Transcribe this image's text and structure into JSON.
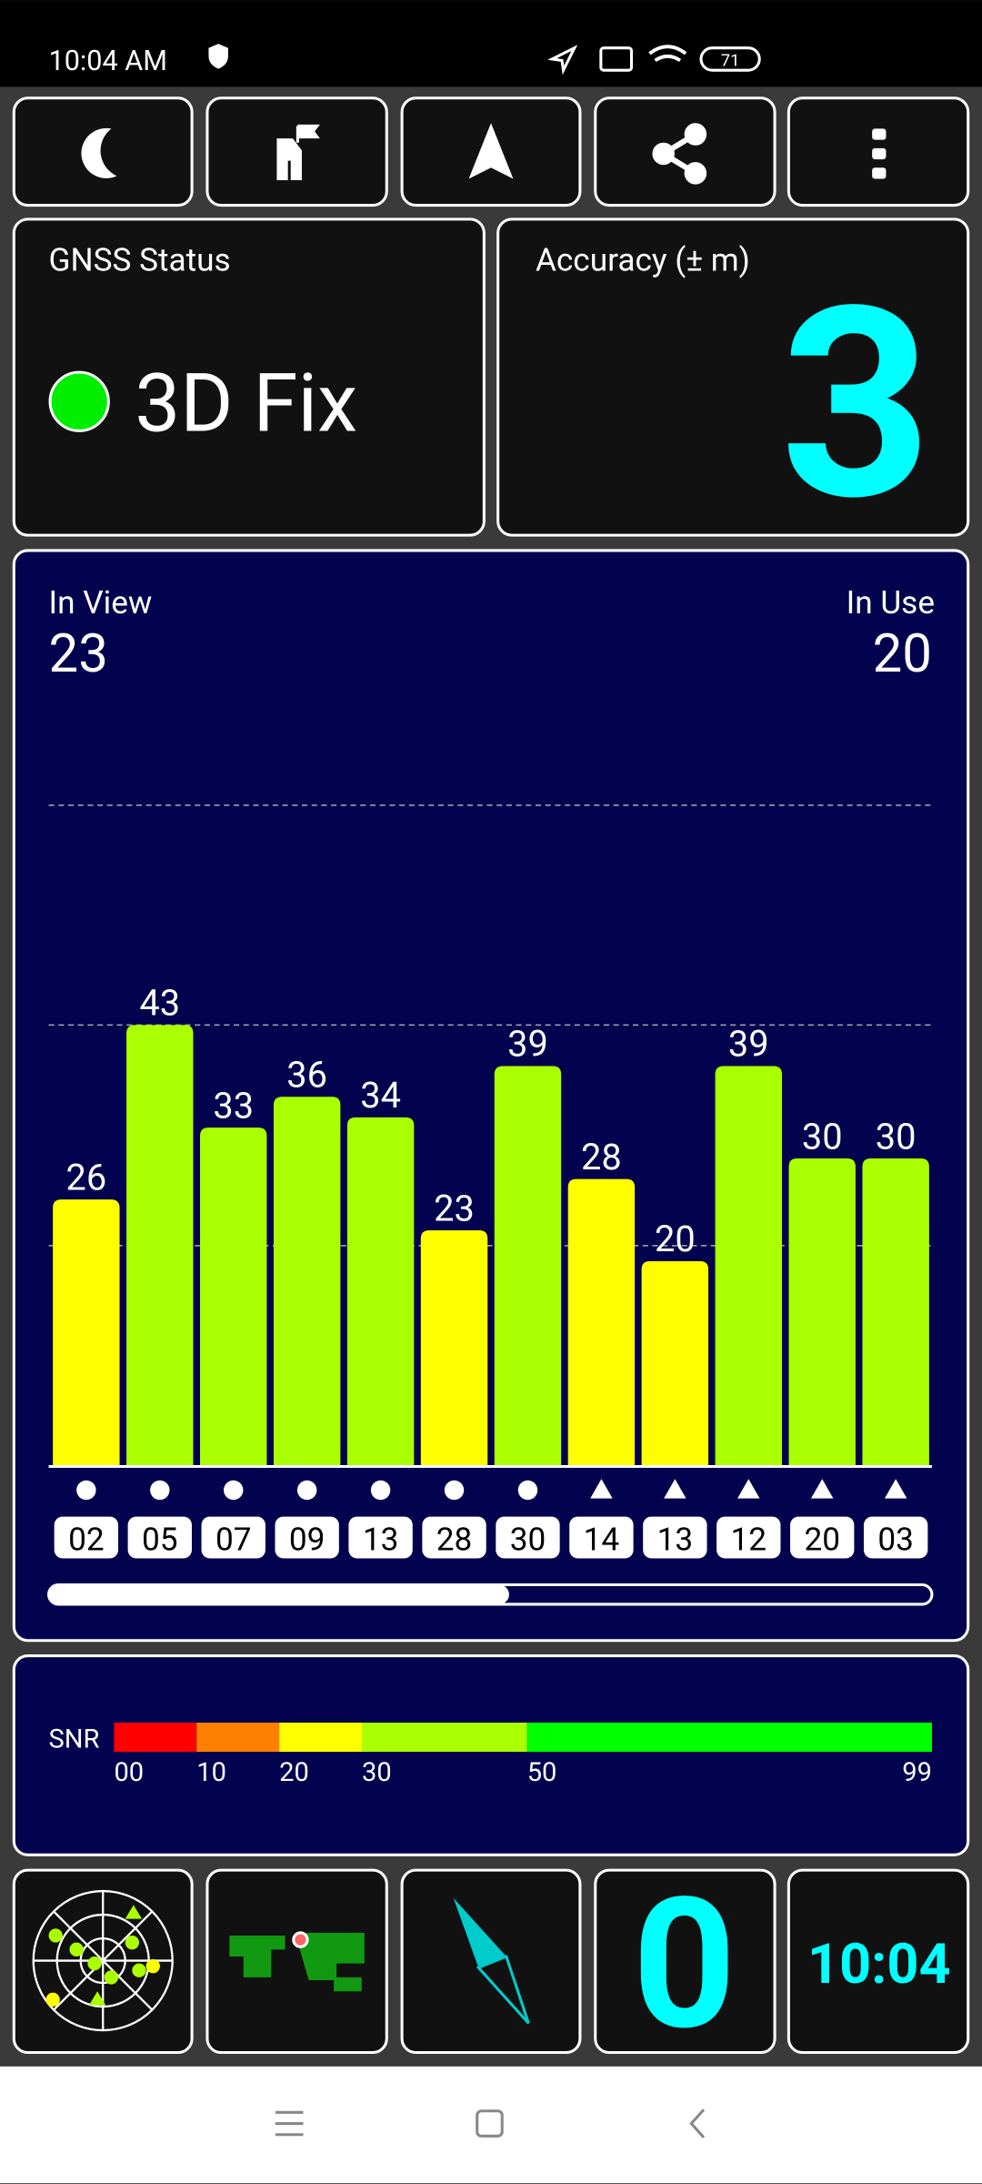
{
  "status_bar": {
    "time": "10:04 AM",
    "battery": "71"
  },
  "gnss_status": {
    "label": "GNSS Status",
    "value": "3D Fix"
  },
  "accuracy": {
    "label": "Accuracy (± m)",
    "value": "3"
  },
  "in_view": {
    "label": "In View",
    "value": "23"
  },
  "in_use": {
    "label": "In Use",
    "value": "20"
  },
  "chart_data": {
    "type": "bar",
    "categories": [
      "02",
      "05",
      "07",
      "09",
      "13",
      "28",
      "30",
      "14",
      "13",
      "12",
      "20",
      "03"
    ],
    "values": [
      26,
      43,
      33,
      36,
      34,
      23,
      39,
      28,
      20,
      39,
      30,
      30
    ],
    "colors": [
      "#ffff00",
      "#aaff00",
      "#aaff00",
      "#aaff00",
      "#aaff00",
      "#ffff00",
      "#aaff00",
      "#ffff00",
      "#ffff00",
      "#aaff00",
      "#aaff00",
      "#aaff00"
    ],
    "shapes": [
      "circle",
      "circle",
      "circle",
      "circle",
      "circle",
      "circle",
      "circle",
      "triangle",
      "triangle",
      "triangle",
      "triangle",
      "triangle"
    ],
    "ylim": [
      0,
      64.4
    ],
    "grid_values": [
      21.5,
      43,
      64.4
    ]
  },
  "snr_legend": {
    "label": "SNR",
    "ticks": [
      {
        "value": 0,
        "label": "00"
      },
      {
        "value": 10,
        "label": "10"
      },
      {
        "value": 20,
        "label": "20"
      },
      {
        "value": 30,
        "label": "30"
      },
      {
        "value": 50,
        "label": "50"
      },
      {
        "value": 99,
        "label": "99"
      }
    ],
    "colors": [
      "#ff0000",
      "#ff8000",
      "#ffff00",
      "#aaff00",
      "#00ff00"
    ]
  },
  "compass": {
    "value": "0"
  },
  "clock": {
    "time": "10:04"
  }
}
